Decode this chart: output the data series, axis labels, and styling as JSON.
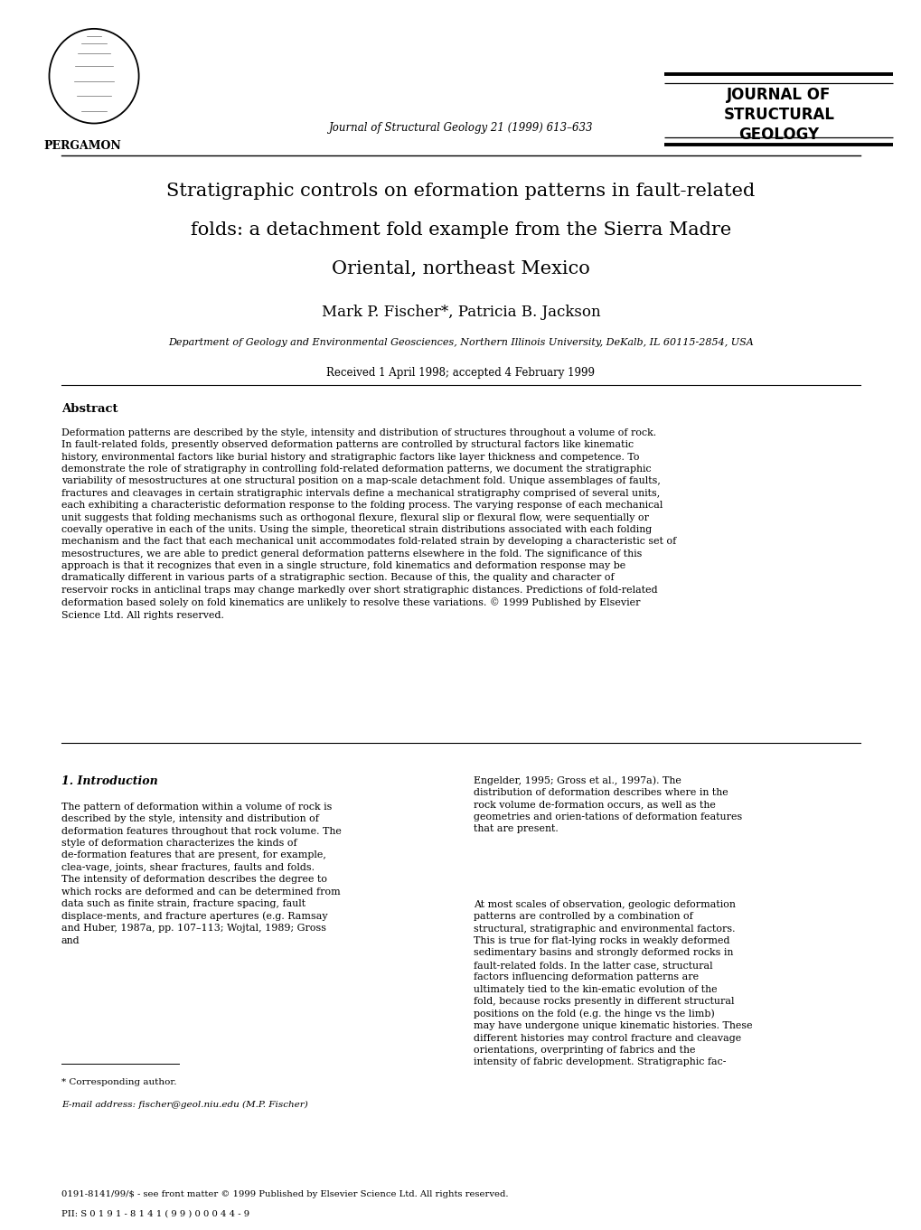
{
  "bg_color": "#ffffff",
  "page_width": 10.2,
  "page_height": 13.61,
  "publisher": "PERGAMON",
  "journal_info": "Journal of Structural Geology 21 (1999) 613–633",
  "title_line1": "Stratigraphic controls on eformation patterns in fault-related",
  "title_line2": "folds: a detachment fold example from the Sierra Madre",
  "title_line3": "Oriental, northeast Mexico",
  "authors": "Mark P. Fischer*, Patricia B. Jackson",
  "affiliation": "Department of Geology and Environmental Geosciences, Northern Illinois University, DeKalb, IL 60115-2854, USA",
  "received": "Received 1 April 1998; accepted 4 February 1999",
  "abstract_title": "Abstract",
  "abstract_text": "    Deformation patterns are described by the style, intensity and distribution of structures throughout a volume of rock. In fault-related folds, presently observed deformation patterns are controlled by structural factors like kinematic history, environmental factors like burial history and stratigraphic factors like layer thickness and competence. To demonstrate the role of stratigraphy in controlling fold-related deformation patterns, we document the stratigraphic variability of mesostructures at one structural position on a map-scale detachment fold. Unique assemblages of faults, fractures and cleavages in certain stratigraphic intervals define a mechanical stratigraphy comprised of several units, each exhibiting a characteristic deformation response to the folding process. The varying response of each mechanical unit suggests that folding mechanisms such as orthogonal flexure, flexural slip or flexural flow, were sequentially or coevally operative in each of the units. Using the simple, theoretical strain distributions associated with each folding mechanism and the fact that each mechanical unit accommodates fold-related strain by developing a characteristic set of mesostructures, we are able to predict general deformation patterns elsewhere in the fold. The significance of this approach is that it recognizes that even in a single structure, fold kinematics and deformation response may be dramatically different in various parts of a stratigraphic section. Because of this, the quality and character of reservoir rocks in anticlinal traps may change markedly over short stratigraphic distances. Predictions of fold-related deformation based solely on fold kinematics are unlikely to resolve these variations. © 1999 Published by Elsevier Science Ltd. All rights reserved.",
  "section1_title": "1. Introduction",
  "intro_col1_para1": "    The pattern of deformation within a volume of rock is described by the style, intensity and distribution of deformation features throughout that rock volume. The style of deformation characterizes the kinds of de-formation features that are present, for example, clea-vage, joints, shear fractures, faults and folds. The intensity of deformation describes the degree to which rocks are deformed and can be determined from data such as finite strain, fracture spacing, fault displace-ments, and fracture apertures (e.g. Ramsay and Huber, 1987a, pp. 107–113; Wojtal, 1989; Gross and",
  "intro_col2_para1": "Engelder, 1995; Gross et al., 1997a). The distribution of deformation describes where in the rock volume de-formation occurs, as well as the geometries and orien-tations of deformation features that are present.",
  "intro_col2_para2": "    At most scales of observation, geologic deformation patterns are controlled by a combination of structural, stratigraphic and environmental factors. This is true for flat-lying rocks in weakly deformed sedimentary basins and strongly deformed rocks in fault-related folds. In the latter case, structural factors influencing deformation patterns are ultimately tied to the kin-ematic evolution of the fold, because rocks presently in different structural positions on the fold (e.g. the hinge vs the limb) may have undergone unique kinematic histories. These different histories may control fracture and cleavage orientations, overprinting of fabrics and the intensity of fabric development. Stratigraphic fac-",
  "footnote_star": "* Corresponding author.",
  "footnote_email": "E-mail address: fischer@geol.niu.edu (M.P. Fischer)",
  "footer_left": "0191-8141/99/$ - see front matter © 1999 Published by Elsevier Science Ltd. All rights reserved.",
  "footer_pii": "PII: S 0 1 9 1 - 8 1 4 1 ( 9 9 ) 0 0 0 4 4 - 9"
}
